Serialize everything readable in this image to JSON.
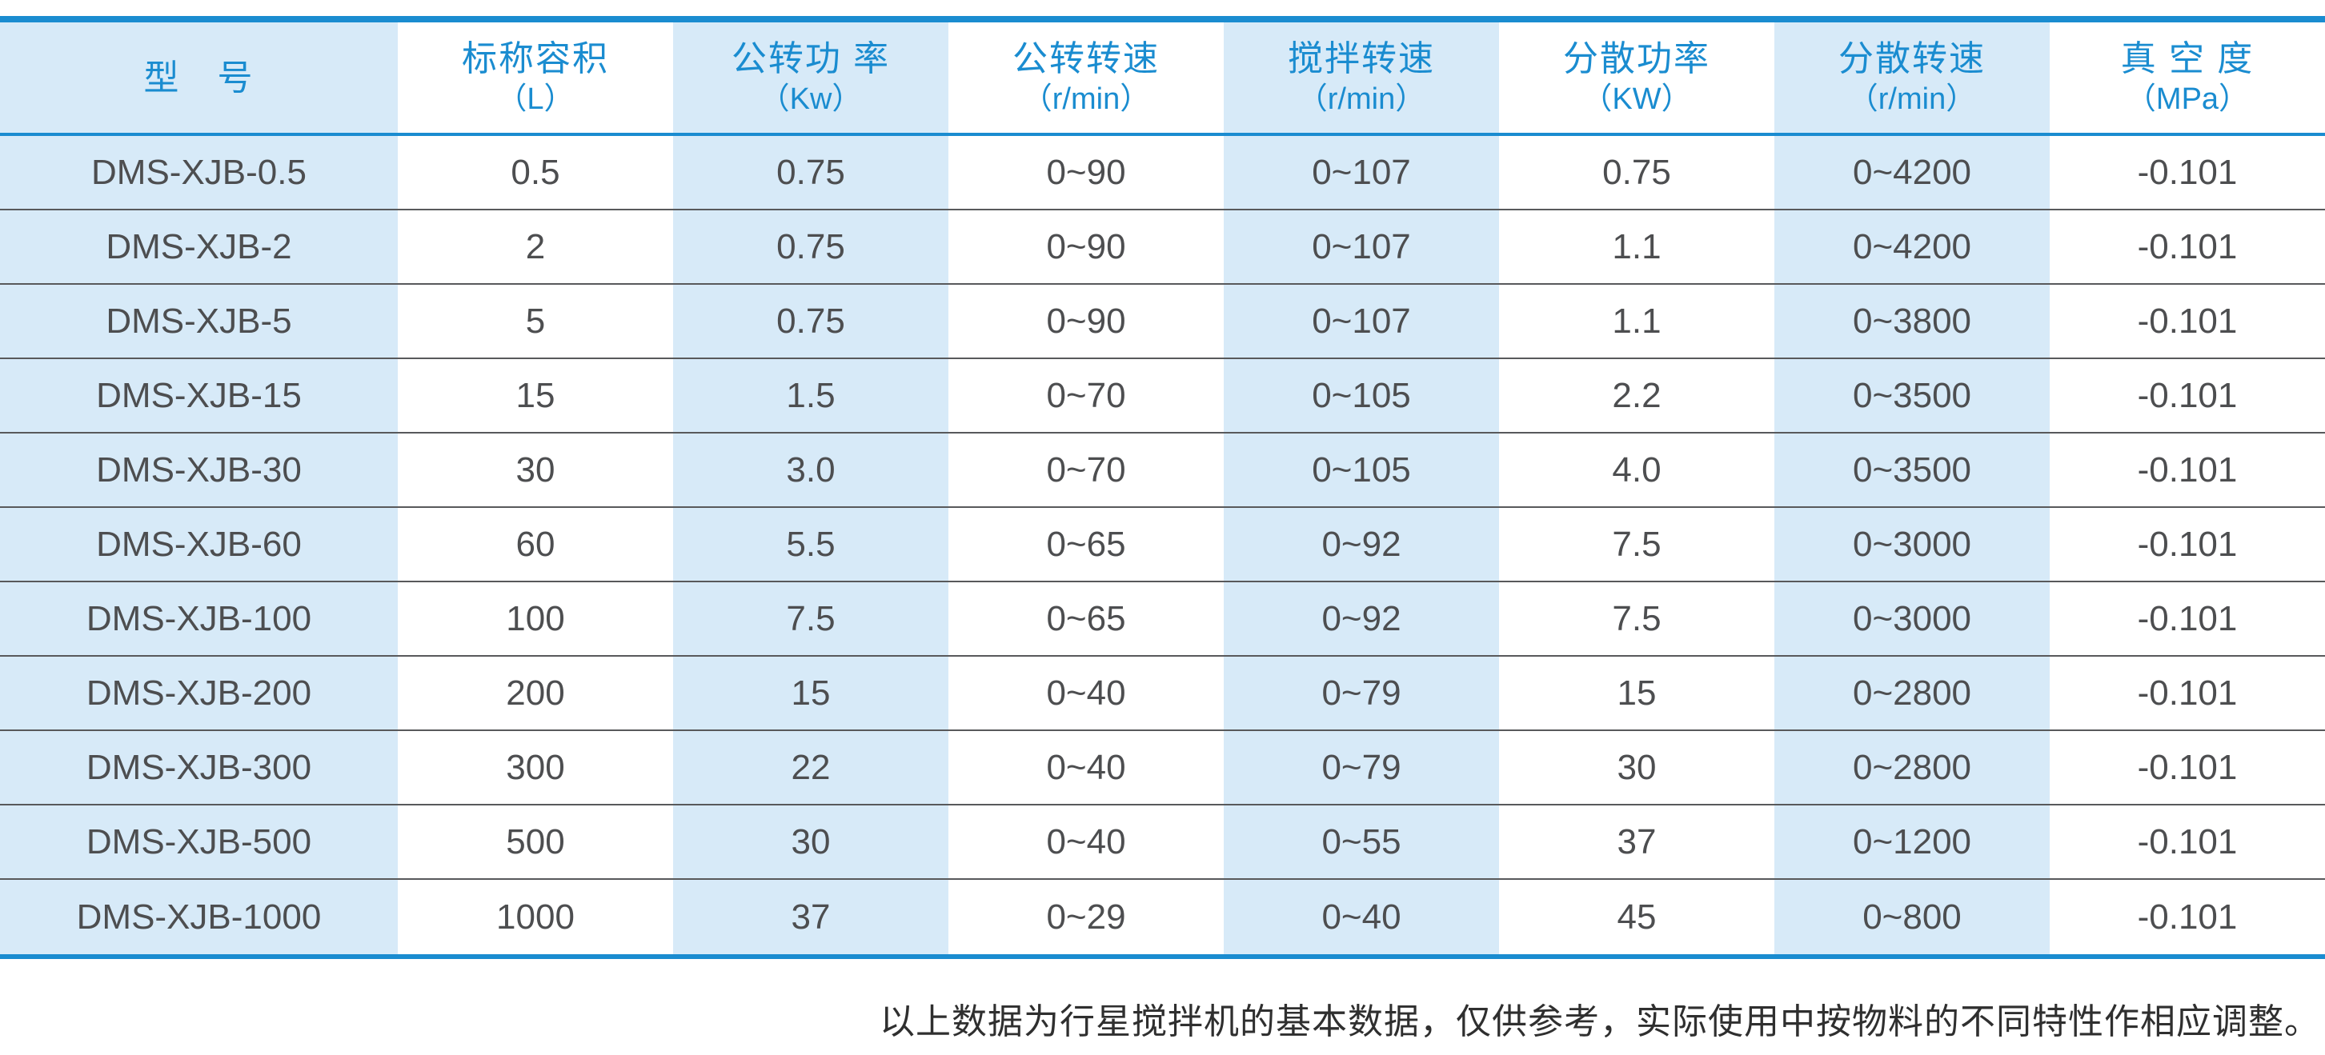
{
  "colors": {
    "accent": "#1a8cd0",
    "band": "#d7eaf8",
    "data_text": "#4d4e50",
    "row_separator": "#58595b"
  },
  "table": {
    "columns": [
      {
        "label": "型　号",
        "unit": ""
      },
      {
        "label": "标称容积",
        "unit": "（L）"
      },
      {
        "label": "公转功 率",
        "unit": "（Kw）"
      },
      {
        "label": "公转转速",
        "unit": "（r/min）"
      },
      {
        "label": "搅拌转速",
        "unit": "（r/min）"
      },
      {
        "label": "分散功率",
        "unit": "（KW）"
      },
      {
        "label": "分散转速",
        "unit": "（r/min）"
      },
      {
        "label": "真 空 度",
        "unit": "（MPa）"
      }
    ],
    "rows": [
      [
        "DMS-XJB-0.5",
        "0.5",
        "0.75",
        "0~90",
        "0~107",
        "0.75",
        "0~4200",
        "-0.101"
      ],
      [
        "DMS-XJB-2",
        "2",
        "0.75",
        "0~90",
        "0~107",
        "1.1",
        "0~4200",
        "-0.101"
      ],
      [
        "DMS-XJB-5",
        "5",
        "0.75",
        "0~90",
        "0~107",
        "1.1",
        "0~3800",
        "-0.101"
      ],
      [
        "DMS-XJB-15",
        "15",
        "1.5",
        "0~70",
        "0~105",
        "2.2",
        "0~3500",
        "-0.101"
      ],
      [
        "DMS-XJB-30",
        "30",
        "3.0",
        "0~70",
        "0~105",
        "4.0",
        "0~3500",
        "-0.101"
      ],
      [
        "DMS-XJB-60",
        "60",
        "5.5",
        "0~65",
        "0~92",
        "7.5",
        "0~3000",
        "-0.101"
      ],
      [
        "DMS-XJB-100",
        "100",
        "7.5",
        "0~65",
        "0~92",
        "7.5",
        "0~3000",
        "-0.101"
      ],
      [
        "DMS-XJB-200",
        "200",
        "15",
        "0~40",
        "0~79",
        "15",
        "0~2800",
        "-0.101"
      ],
      [
        "DMS-XJB-300",
        "300",
        "22",
        "0~40",
        "0~79",
        "30",
        "0~2800",
        "-0.101"
      ],
      [
        "DMS-XJB-500",
        "500",
        "30",
        "0~40",
        "0~55",
        "37",
        "0~1200",
        "-0.101"
      ],
      [
        "DMS-XJB-1000",
        "1000",
        "37",
        "0~29",
        "0~40",
        "45",
        "0~800",
        "-0.101"
      ]
    ]
  },
  "footnote": "以上数据为行星搅拌机的基本数据，仅供参考，实际使用中按物料的不同特性作相应调整。"
}
